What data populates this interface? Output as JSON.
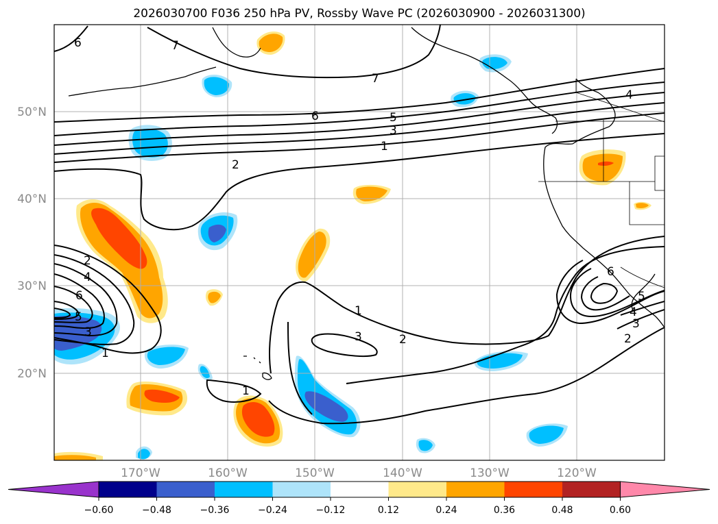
{
  "title": "2026030700 F036 250 hPa PV, Rossby Wave PC (2026030900 - 2026031300)",
  "map": {
    "lat_labels": [
      "50°N",
      "40°N",
      "30°N",
      "20°N"
    ],
    "lon_labels": [
      "170°W",
      "160°W",
      "150°W",
      "140°W",
      "130°W",
      "120°W"
    ],
    "grid": true
  },
  "contour_labels": {
    "c7a": "7",
    "c6a": "6",
    "c7b": "7",
    "c6b": "6",
    "c5a": "5",
    "c3a": "3",
    "c1a": "1",
    "c2a": "2",
    "c4a": "4",
    "c2b": "2",
    "c4b": "4",
    "c6c": "6",
    "c5b": "5",
    "c3b": "3",
    "c1b": "1",
    "c1c": "1",
    "c3c": "3",
    "c2c": "2",
    "c1d": "1",
    "c6d": "6",
    "c3d": "3",
    "c2d": "2",
    "c5c": "5",
    "c4c": "4"
  },
  "colorbar": {
    "ticks": [
      "−0.60",
      "−0.48",
      "−0.36",
      "−0.24",
      "−0.12",
      "0.12",
      "0.24",
      "0.36",
      "0.48",
      "0.60"
    ],
    "colors": [
      "#9933cc",
      "#00008b",
      "#3a5fcd",
      "#00bfff",
      "#aee4fa",
      "#ffffff",
      "#ffe98a",
      "#ffa500",
      "#ff4500",
      "#b22222",
      "#ff88aa"
    ]
  }
}
